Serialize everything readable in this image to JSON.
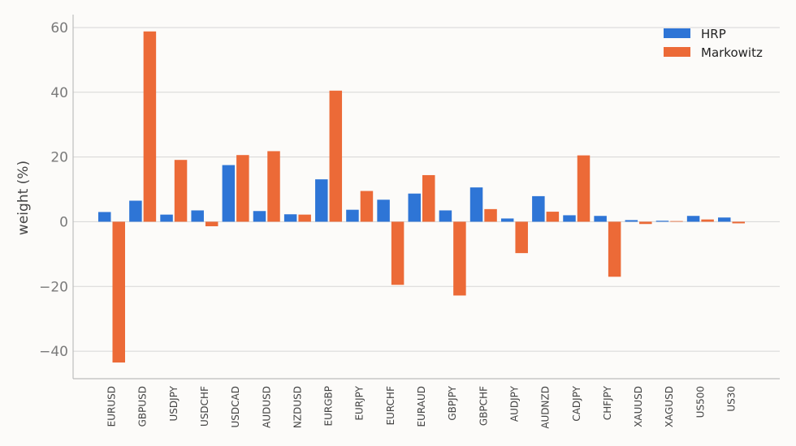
{
  "chart_data": {
    "type": "bar",
    "title": "",
    "xlabel": "",
    "ylabel": "weight  (%)",
    "ylim": [
      -48.5,
      64
    ],
    "yticks": [
      60,
      40,
      20,
      0,
      -20,
      -40
    ],
    "ytick_labels": [
      "60",
      "40",
      "20",
      "0",
      "−20",
      "−40"
    ],
    "grid": true,
    "legend_position": "top-right",
    "categories": [
      "EURUSD",
      "GBPUSD",
      "USDJPY",
      "USDCHF",
      "USDCAD",
      "AUDUSD",
      "NZDUSD",
      "EURGBP",
      "EURJPY",
      "EURCHF",
      "EURAUD",
      "GBPJPY",
      "GBPCHF",
      "AUDJPY",
      "AUDNZD",
      "CADJPY",
      "CHFJPY",
      "XAUUSD",
      "XAGUSD",
      "US500",
      "US30"
    ],
    "series": [
      {
        "name": "HRP",
        "color": "#2e75d6",
        "values": [
          3.0,
          6.5,
          2.2,
          3.5,
          17.5,
          3.3,
          2.3,
          13.1,
          3.7,
          6.8,
          8.7,
          3.5,
          10.6,
          1.0,
          7.9,
          2.0,
          1.8,
          0.5,
          0.3,
          1.8,
          1.3
        ]
      },
      {
        "name": "Markowitz",
        "color": "#ec6a37",
        "values": [
          -43.5,
          58.8,
          19.1,
          -1.4,
          20.6,
          21.8,
          2.2,
          40.5,
          9.5,
          -19.5,
          14.4,
          -22.8,
          3.9,
          -9.7,
          3.1,
          20.5,
          -17.0,
          -0.7,
          0.2,
          0.7,
          -0.5
        ]
      }
    ]
  }
}
